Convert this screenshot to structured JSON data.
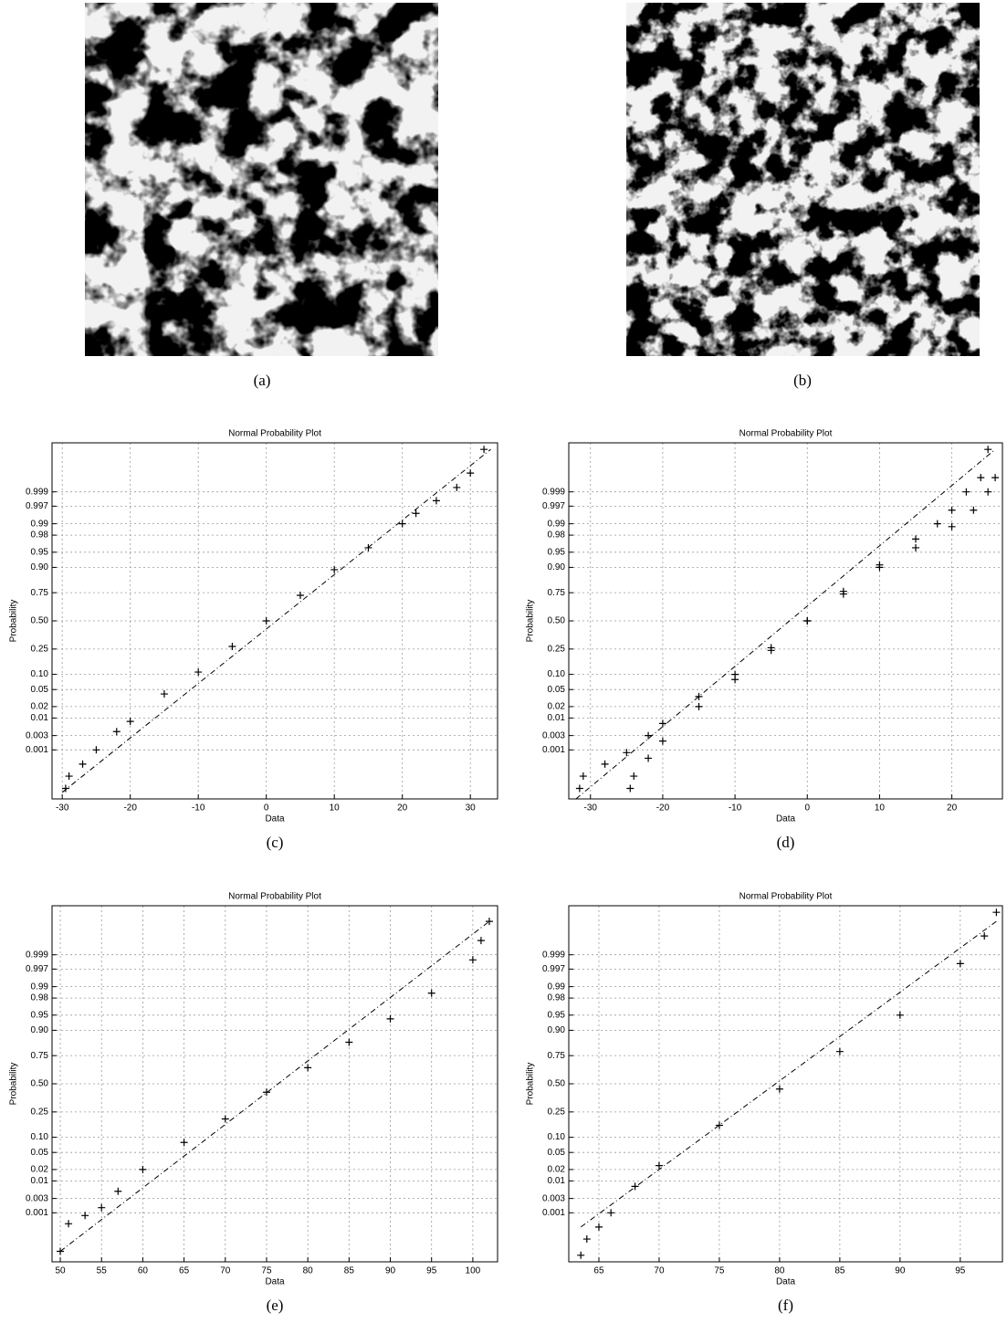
{
  "panels": [
    "(a)",
    "(b)"
  ],
  "chart_data": [
    {
      "type": "scatter",
      "title": "Normal Probability Plot",
      "xlabel": "Data",
      "ylabel": "Probability",
      "caption": "(c)",
      "xlim": [
        -31.5,
        34
      ],
      "ylim": [
        1e-05,
        0.99999
      ],
      "grid": true,
      "xticks": [
        -30,
        -20,
        -10,
        0,
        10,
        20,
        30
      ],
      "yticks": [
        0.001,
        0.003,
        0.01,
        0.02,
        0.05,
        {
          "value": 0.1,
          "label": "0.10"
        },
        0.25,
        {
          "value": 0.5,
          "label": "0.50"
        },
        0.75,
        {
          "value": 0.9,
          "label": "0.90"
        },
        0.95,
        0.98,
        0.99,
        0.997,
        0.999
      ],
      "series": [
        {
          "color": "#000000",
          "marker": "+",
          "x": [
            -29.5,
            -29,
            -27,
            -25,
            -22,
            -20,
            -15,
            -10,
            -5,
            0,
            5,
            10,
            15,
            20,
            22,
            25,
            28,
            30,
            32
          ],
          "values": [
            3e-05,
            0.0001,
            0.0003,
            0.001,
            0.004,
            0.008,
            0.04,
            0.11,
            0.27,
            0.5,
            0.73,
            0.89,
            0.96,
            0.99,
            0.995,
            0.998,
            0.9993,
            0.9998,
            0.99998
          ]
        },
        {
          "color": "#000000",
          "style": "dashdot",
          "x": [
            -30,
            33
          ],
          "values": [
            2e-05,
            0.99998
          ]
        }
      ]
    },
    {
      "type": "scatter",
      "title": "Normal Probability Plot",
      "xlabel": "Data",
      "ylabel": "Probability",
      "caption": "(d)",
      "xlim": [
        -33,
        27
      ],
      "ylim": [
        1e-05,
        0.99999
      ],
      "grid": true,
      "xticks": [
        -30,
        -20,
        -10,
        0,
        10,
        20
      ],
      "yticks": [
        0.001,
        0.003,
        0.01,
        0.02,
        0.05,
        {
          "value": 0.1,
          "label": "0.10"
        },
        0.25,
        {
          "value": 0.5,
          "label": "0.50"
        },
        0.75,
        {
          "value": 0.9,
          "label": "0.90"
        },
        0.95,
        0.98,
        0.99,
        0.997,
        0.999
      ],
      "series": [
        {
          "color": "#000000",
          "marker": "+",
          "x": [
            -31.5,
            -31,
            -28,
            -25,
            -22,
            -20,
            -15,
            -10,
            -5,
            0,
            5,
            10,
            15,
            18,
            20,
            22,
            24,
            25
          ],
          "values": [
            3e-05,
            0.0001,
            0.0003,
            0.0008,
            0.003,
            0.007,
            0.035,
            0.1,
            0.26,
            0.5,
            0.76,
            0.91,
            0.975,
            0.99,
            0.996,
            0.999,
            0.9997,
            0.99998
          ]
        },
        {
          "color": "#000000",
          "marker": "+",
          "x": [
            -24.5,
            -24,
            -22,
            -20,
            -15,
            -10,
            -5,
            0,
            5,
            10,
            15,
            20,
            23,
            25,
            26
          ],
          "values": [
            3e-05,
            0.0001,
            0.0005,
            0.002,
            0.02,
            0.08,
            0.24,
            0.5,
            0.74,
            0.9,
            0.96,
            0.988,
            0.996,
            0.999,
            0.9997
          ]
        },
        {
          "color": "#000000",
          "style": "dashdot",
          "x": [
            -32,
            26
          ],
          "values": [
            1e-05,
            0.99998
          ]
        }
      ]
    },
    {
      "type": "scatter",
      "title": "Normal Probability Plot",
      "xlabel": "Data",
      "ylabel": "Probability",
      "caption": "(e)",
      "xlim": [
        49,
        103
      ],
      "ylim": [
        1e-05,
        0.99999
      ],
      "grid": true,
      "xticks": [
        50,
        55,
        60,
        65,
        70,
        75,
        80,
        85,
        90,
        95,
        100
      ],
      "yticks": [
        0.001,
        0.003,
        0.01,
        0.02,
        0.05,
        {
          "value": 0.1,
          "label": "0.10"
        },
        0.25,
        {
          "value": 0.5,
          "label": "0.50"
        },
        0.75,
        {
          "value": 0.9,
          "label": "0.90"
        },
        0.95,
        0.98,
        0.99,
        0.997,
        0.999
      ],
      "series": [
        {
          "color": "#000000",
          "marker": "+",
          "x": [
            50,
            51,
            53,
            55,
            57,
            60,
            65,
            70,
            75,
            80,
            85,
            90,
            95,
            100,
            101,
            102
          ],
          "values": [
            3e-05,
            0.0004,
            0.0008,
            0.0015,
            0.005,
            0.02,
            0.08,
            0.2,
            0.42,
            0.65,
            0.84,
            0.94,
            0.985,
            0.9985,
            0.9997,
            0.99995
          ]
        },
        {
          "color": "#000000",
          "style": "dashdot",
          "x": [
            50,
            102
          ],
          "values": [
            3e-05,
            0.99995
          ]
        }
      ]
    },
    {
      "type": "scatter",
      "title": "Normal Probability Plot",
      "xlabel": "Data",
      "ylabel": "Probability",
      "caption": "(f)",
      "xlim": [
        62.5,
        98.5
      ],
      "ylim": [
        1e-05,
        0.99999
      ],
      "grid": true,
      "xticks": [
        65,
        70,
        75,
        80,
        85,
        90,
        95
      ],
      "yticks": [
        0.001,
        0.003,
        0.01,
        0.02,
        0.05,
        {
          "value": 0.1,
          "label": "0.10"
        },
        0.25,
        {
          "value": 0.5,
          "label": "0.50"
        },
        0.75,
        {
          "value": 0.9,
          "label": "0.90"
        },
        0.95,
        0.98,
        0.99,
        0.997,
        0.999
      ],
      "series": [
        {
          "color": "#000000",
          "marker": "+",
          "x": [
            63.5,
            64,
            65,
            66,
            68,
            70,
            75,
            80,
            85,
            90,
            95,
            97,
            98
          ],
          "values": [
            2e-05,
            0.0001,
            0.0003,
            0.001,
            0.007,
            0.025,
            0.16,
            0.45,
            0.78,
            0.95,
            0.998,
            0.9998,
            0.99998
          ]
        },
        {
          "color": "#000000",
          "style": "dashdot",
          "x": [
            63.5,
            98
          ],
          "values": [
            0.0003,
            0.99995
          ]
        }
      ]
    }
  ]
}
